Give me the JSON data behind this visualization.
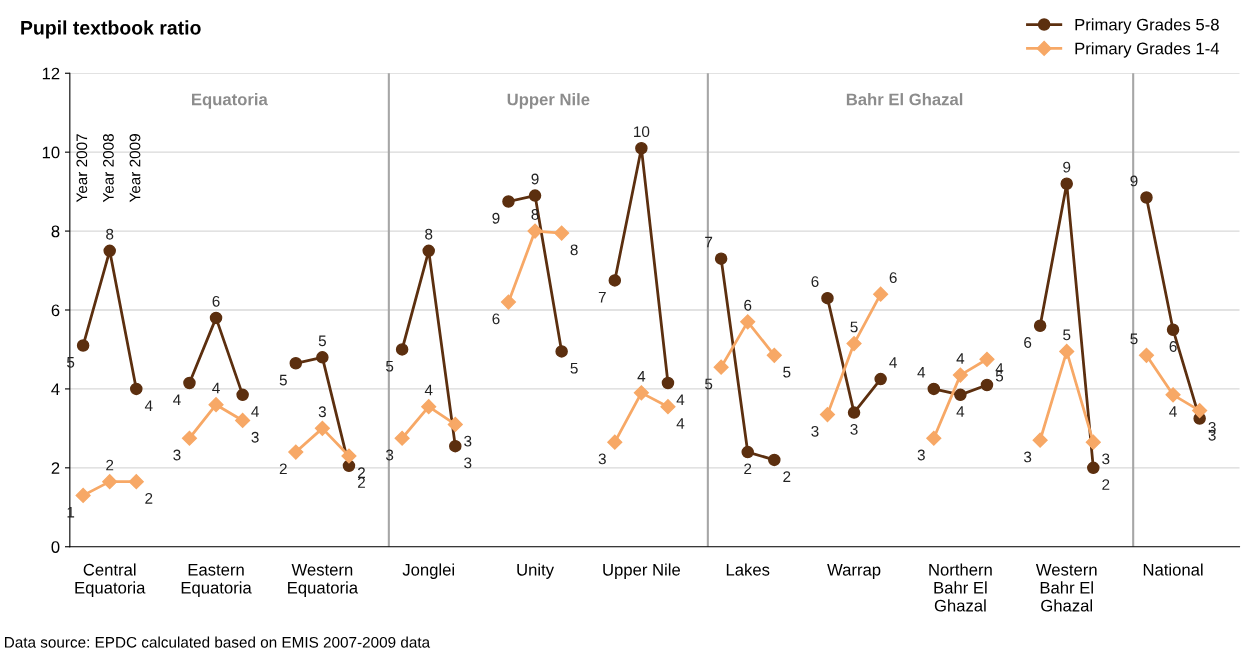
{
  "chart_data": {
    "type": "line",
    "title": "Pupil textbook ratio",
    "categories": [
      null,
      "Central\nEquatoria",
      null,
      null,
      null,
      "Eastern\nEquatoria",
      null,
      null,
      null,
      "Western\nEquatoria",
      null,
      null,
      null,
      "Jonglei",
      null,
      null,
      null,
      "Unity",
      null,
      null,
      null,
      "Upper Nile",
      null,
      null,
      null,
      "Lakes",
      null,
      null,
      null,
      "Warrap",
      null,
      null,
      null,
      "Northern\nBahr El\nGhazal",
      null,
      null,
      null,
      "Western\nBahr El\nGhazal",
      null,
      null,
      null,
      "National",
      null,
      null
    ],
    "series": [
      {
        "name": "Primary Grades 5-8",
        "color": "#5c2f0f",
        "marker": "circle",
        "values": [
          5.1,
          7.5,
          4.0,
          null,
          4.15,
          5.8,
          3.85,
          null,
          4.65,
          4.8,
          2.05,
          null,
          5.0,
          7.5,
          2.55,
          null,
          8.75,
          8.9,
          4.95,
          null,
          6.75,
          10.1,
          4.15,
          null,
          7.3,
          2.4,
          2.2,
          null,
          6.3,
          3.4,
          4.25,
          null,
          4.0,
          3.85,
          4.1,
          null,
          5.6,
          9.2,
          2.0,
          null,
          8.85,
          5.5,
          3.25,
          null
        ],
        "value_labels": [
          "5",
          "8",
          "4",
          null,
          "4",
          "6",
          "4",
          null,
          "5",
          "5",
          "2",
          null,
          "5",
          "8",
          "3",
          null,
          "9",
          "9",
          "5",
          null,
          "7",
          "10",
          "4",
          null,
          "7",
          "2",
          "2",
          null,
          "6",
          "3",
          "4",
          null,
          "4",
          "4",
          "4",
          null,
          "6",
          "9",
          "2",
          null,
          "9",
          "6",
          "3",
          null
        ]
      },
      {
        "name": "Primary Grades 1-4",
        "color": "#f7a866",
        "marker": "diamond",
        "values": [
          1.3,
          1.65,
          1.65,
          null,
          2.75,
          3.6,
          3.2,
          null,
          2.4,
          3.0,
          2.3,
          null,
          2.75,
          3.55,
          3.1,
          null,
          6.2,
          8.0,
          7.95,
          null,
          2.65,
          3.9,
          3.55,
          null,
          4.55,
          5.7,
          4.85,
          null,
          3.35,
          5.15,
          6.4,
          null,
          2.75,
          4.35,
          4.75,
          null,
          2.7,
          4.95,
          2.65,
          null,
          4.85,
          3.85,
          3.45,
          null
        ],
        "value_labels": [
          "1",
          "2",
          "2",
          null,
          "3",
          "4",
          "3",
          null,
          "2",
          "3",
          "2",
          null,
          "3",
          "4",
          "3",
          null,
          "6",
          "8",
          "8",
          null,
          "3",
          "4",
          "4",
          null,
          "5",
          "6",
          "5",
          null,
          "3",
          "5",
          "6",
          null,
          "3",
          "4",
          "5",
          null,
          "3",
          "5",
          "3",
          null,
          "5",
          "4",
          "3",
          null
        ]
      }
    ],
    "ylim": [
      0,
      12
    ],
    "yticks": [
      0,
      2,
      4,
      6,
      8,
      10,
      12
    ],
    "grid": "y",
    "legend": "top right",
    "line_style": "solid",
    "annotations": [
      "Year 2007",
      "Year 2008",
      "Year 2009",
      "Equatoria",
      "Upper Nile",
      "Bahr El Ghazal",
      "Data source: EPDC calculated based on EMIS 2007-2009 data"
    ]
  }
}
